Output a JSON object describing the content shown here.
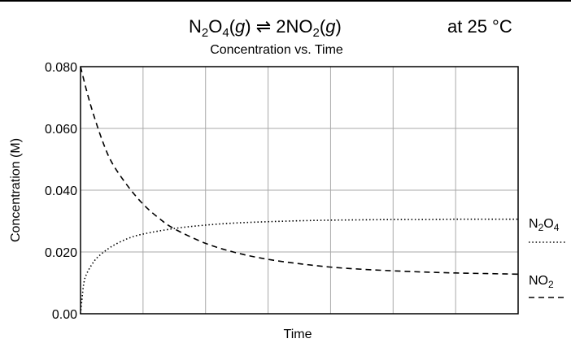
{
  "header": {
    "equation": {
      "reactant": {
        "prefix": "N",
        "sub1": "2",
        "mid": "O",
        "sub2": "4",
        "phase": "g"
      },
      "product": {
        "prefix": "2NO",
        "sub1": "2",
        "phase": "g"
      },
      "arrow": "⇌"
    },
    "condition": "at 25 °C"
  },
  "chart_data": {
    "type": "line",
    "title": "Concentration vs. Time",
    "xlabel": "Time",
    "ylabel": "Concentration (M)",
    "ylim": [
      0,
      0.08
    ],
    "xlim": [
      0,
      7
    ],
    "grid": true,
    "x_tick_labels": [],
    "y_ticks": [
      {
        "value": 0,
        "label": "0.00"
      },
      {
        "value": 0.02,
        "label": "0.020"
      },
      {
        "value": 0.04,
        "label": "0.040"
      },
      {
        "value": 0.06,
        "label": "0.060"
      },
      {
        "value": 0.08,
        "label": "0.080"
      }
    ],
    "x_grid_values": [
      0,
      1,
      2,
      3,
      4,
      5,
      6,
      7
    ],
    "legend_placement": "right",
    "series": [
      {
        "legend": {
          "base": "N",
          "sub1": "2",
          "mid": "O",
          "sub2": "4"
        },
        "style": "dotted",
        "x": [
          0,
          0.05,
          0.1,
          0.2,
          0.3,
          0.5,
          0.75,
          1.0,
          1.5,
          2.0,
          2.5,
          3.0,
          3.5,
          4.0,
          4.5,
          5.0,
          5.5,
          6.0,
          6.5,
          7.0
        ],
        "y": [
          0.0,
          0.0095,
          0.013,
          0.0165,
          0.0188,
          0.0218,
          0.0243,
          0.0258,
          0.0276,
          0.0287,
          0.0294,
          0.0298,
          0.0301,
          0.0303,
          0.0304,
          0.0305,
          0.0305,
          0.0306,
          0.0306,
          0.0306
        ]
      },
      {
        "legend": {
          "base": "NO",
          "sub1": "2"
        },
        "style": "dashed",
        "x": [
          0,
          0.1,
          0.2,
          0.35,
          0.5,
          0.75,
          1.0,
          1.25,
          1.5,
          2.0,
          2.5,
          3.0,
          3.5,
          4.0,
          4.5,
          5.0,
          5.5,
          6.0,
          6.5,
          7.0
        ],
        "y": [
          0.08,
          0.072,
          0.065,
          0.056,
          0.049,
          0.0415,
          0.0355,
          0.031,
          0.0275,
          0.0228,
          0.0197,
          0.0176,
          0.0162,
          0.0151,
          0.0144,
          0.0139,
          0.0135,
          0.0132,
          0.013,
          0.0128
        ]
      }
    ]
  }
}
